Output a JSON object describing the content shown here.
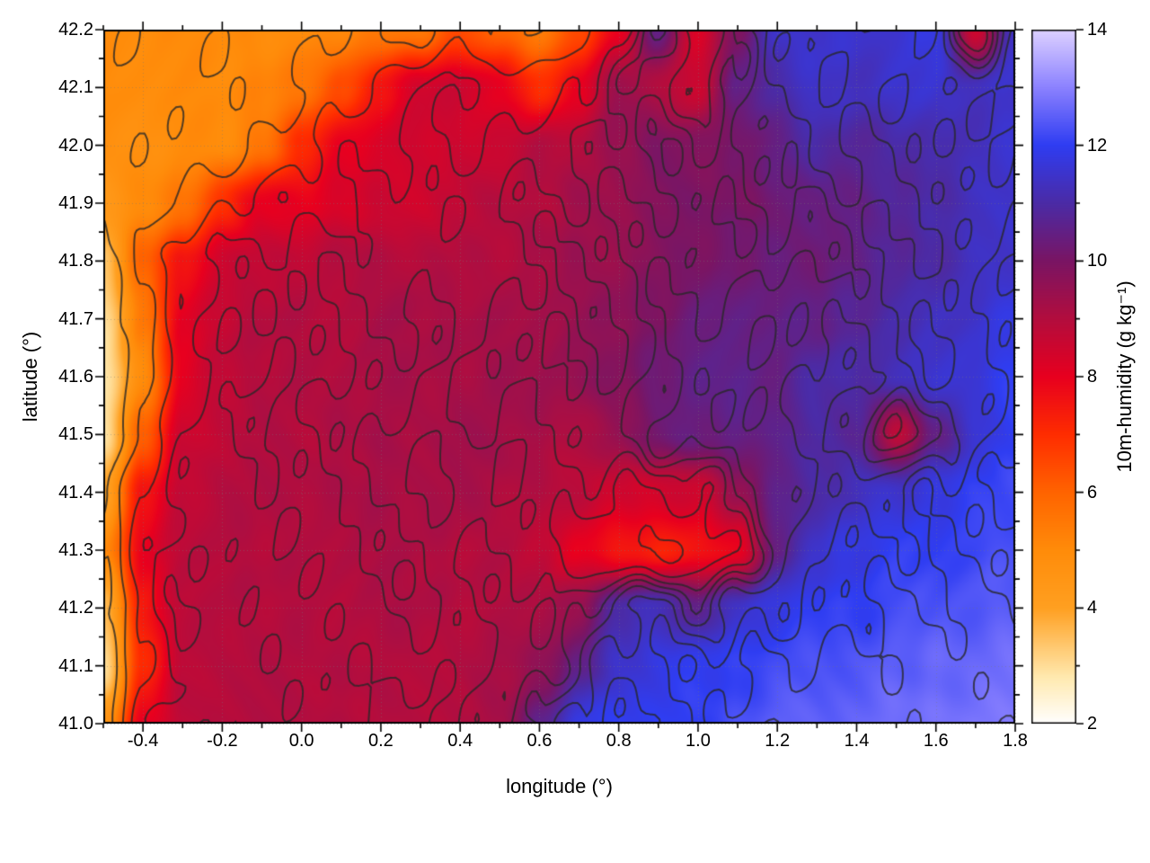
{
  "page": {
    "background": "#ffffff"
  },
  "chart_data": {
    "type": "heatmap",
    "title": "",
    "xlabel": "longitude (°)",
    "ylabel": "latitude (°)",
    "colorbar_label": "10m-humidity (g kg⁻¹)",
    "x_range": [
      -0.5,
      1.8
    ],
    "y_range": [
      41.0,
      42.2
    ],
    "x_ticks": [
      -0.4,
      -0.2,
      0.0,
      0.2,
      0.4,
      0.6,
      0.8,
      1.0,
      1.2,
      1.4,
      1.6,
      1.8
    ],
    "x_tick_labels": [
      "-0.4",
      "-0.2",
      "0.0",
      "0.2",
      "0.4",
      "0.6",
      "0.8",
      "1.0",
      "1.2",
      "1.4",
      "1.6",
      "1.8"
    ],
    "x_minor_step": 0.1,
    "y_ticks": [
      41.0,
      41.1,
      41.2,
      41.3,
      41.4,
      41.5,
      41.6,
      41.7,
      41.8,
      41.9,
      42.0,
      42.1,
      42.2
    ],
    "y_tick_labels": [
      "41.0",
      "41.1",
      "41.2",
      "41.3",
      "41.4",
      "41.5",
      "41.6",
      "41.7",
      "41.8",
      "41.9",
      "42.0",
      "42.1",
      "42.2"
    ],
    "y_minor_step": 0.05,
    "colorbar_range": [
      2,
      14
    ],
    "colorbar_ticks": [
      2,
      4,
      6,
      8,
      10,
      12,
      14
    ],
    "colorbar_tick_labels": [
      "2",
      "4",
      "6",
      "8",
      "10",
      "12",
      "14"
    ],
    "colorbar_minor_step": 1,
    "layout": {
      "grid": true,
      "legend": "none"
    },
    "palette": [
      {
        "v": 2.0,
        "c": "#ffffff"
      },
      {
        "v": 2.8,
        "c": "#ffeab0"
      },
      {
        "v": 4.0,
        "c": "#ffa021"
      },
      {
        "v": 5.0,
        "c": "#ff8c0a"
      },
      {
        "v": 6.0,
        "c": "#ff6400"
      },
      {
        "v": 7.0,
        "c": "#ff2d00"
      },
      {
        "v": 8.0,
        "c": "#e8001f"
      },
      {
        "v": 9.0,
        "c": "#b30d3e"
      },
      {
        "v": 10.0,
        "c": "#7a1564"
      },
      {
        "v": 11.0,
        "c": "#4b2ba6"
      },
      {
        "v": 12.0,
        "c": "#2f3df2"
      },
      {
        "v": 13.0,
        "c": "#8c82ff"
      },
      {
        "v": 14.0,
        "c": "#ded2ff"
      }
    ],
    "grid": {
      "x0": -0.5,
      "x1": 1.8,
      "y0": 41.0,
      "y1": 42.2,
      "nx": 24,
      "ny": 13,
      "order": "rows listed from north (42.2) to south (41.0), columns west (-0.5) to east (1.8)",
      "values_north_to_south": [
        [
          5,
          5,
          5,
          5,
          5,
          5,
          5.2,
          5.5,
          5.5,
          6.5,
          6,
          5.5,
          6.5,
          8,
          10.5,
          8.2,
          10,
          11.5,
          11.5,
          11.5,
          11.5,
          11.8,
          8.5,
          11.5
        ],
        [
          5,
          5,
          5,
          5,
          5.2,
          5.5,
          6.5,
          7.5,
          8.5,
          8.5,
          8,
          7,
          8,
          9.5,
          9,
          8.5,
          10.5,
          11,
          11.5,
          11.3,
          11.5,
          11.5,
          11.3,
          11.5
        ],
        [
          4.8,
          4.8,
          5,
          5,
          5.5,
          7,
          8,
          8.3,
          8.5,
          8.5,
          8.5,
          9,
          9,
          9.5,
          10,
          9.8,
          10,
          10.5,
          11,
          10.8,
          11,
          11,
          11.3,
          11.5
        ],
        [
          4.5,
          5,
          5.5,
          7,
          8,
          8,
          8.3,
          8.5,
          8.5,
          8.7,
          9,
          9,
          9.3,
          9.5,
          9.8,
          10,
          10,
          10.2,
          10.5,
          10.5,
          10.8,
          11,
          11.3,
          11.5
        ],
        [
          3.5,
          6,
          7.5,
          8.5,
          8.7,
          8.8,
          9,
          9,
          9,
          9,
          9,
          9.2,
          9.4,
          9.5,
          9.8,
          10,
          10.2,
          10.3,
          10.3,
          10.5,
          10.8,
          11,
          11.3,
          11.5
        ],
        [
          3,
          5.5,
          8,
          8.7,
          9,
          9,
          9,
          9.2,
          9.2,
          9.2,
          9.2,
          9.3,
          9.5,
          9.7,
          10,
          10.3,
          10.5,
          10.5,
          10.5,
          10.8,
          11,
          11.3,
          11.5,
          11.8
        ],
        [
          2.8,
          5,
          8,
          8.8,
          9,
          9,
          9.1,
          9.2,
          9.2,
          9.2,
          9.3,
          9.4,
          9.6,
          9.8,
          10.3,
          10.5,
          10.6,
          10.5,
          11,
          11,
          11.2,
          11.5,
          11.7,
          12
        ],
        [
          3,
          6,
          8.5,
          8.8,
          9,
          9,
          9.1,
          9.2,
          9.2,
          9.3,
          9.3,
          9.2,
          9,
          9.6,
          10.2,
          10.4,
          10.5,
          10.5,
          11,
          10.8,
          8.8,
          10.5,
          11.5,
          12
        ],
        [
          4,
          7.5,
          8.7,
          9,
          9,
          9.1,
          9.1,
          9.2,
          9.2,
          9.2,
          9.1,
          9,
          8.8,
          8.5,
          8.4,
          8.5,
          9.5,
          10.5,
          11,
          11.3,
          11.5,
          11.8,
          12,
          12.2
        ],
        [
          5,
          8,
          8.8,
          9,
          9,
          9,
          9.1,
          9.1,
          9.1,
          9,
          9,
          8.8,
          8,
          7.5,
          7.3,
          7.5,
          8,
          10.5,
          11.5,
          11.8,
          12,
          12,
          12.2,
          12.3
        ],
        [
          3.5,
          7.5,
          8.8,
          9,
          9,
          9,
          9,
          9.1,
          9.1,
          9,
          9,
          9.2,
          9.5,
          11,
          11.3,
          10.5,
          11.5,
          11.8,
          12,
          12,
          12.2,
          12.3,
          12.4,
          12.5
        ],
        [
          3,
          7,
          8.8,
          9,
          9,
          9,
          9,
          9,
          9,
          9,
          9.2,
          9.5,
          10.5,
          11.5,
          11.8,
          12,
          12,
          12.2,
          12.3,
          12.4,
          12.5,
          12.6,
          12.6,
          12.7
        ],
        [
          4.5,
          8,
          8.8,
          9,
          9,
          9,
          9,
          9,
          9,
          9,
          9.2,
          10.5,
          11.8,
          12,
          12,
          12,
          12.2,
          12.5,
          12.5,
          12.6,
          12.7,
          12.7,
          12.8,
          12.8
        ]
      ]
    },
    "contours": {
      "levels": [
        4.2,
        5.5,
        7,
        8.3,
        9.1,
        9.7,
        10.3,
        11,
        11.7,
        12.3
      ],
      "color": "rgba(40,40,40,0.8)",
      "width": 2
    },
    "grid_lines": {
      "color": "rgba(120,120,120,0.45)",
      "dash": [
        1,
        3
      ]
    }
  }
}
